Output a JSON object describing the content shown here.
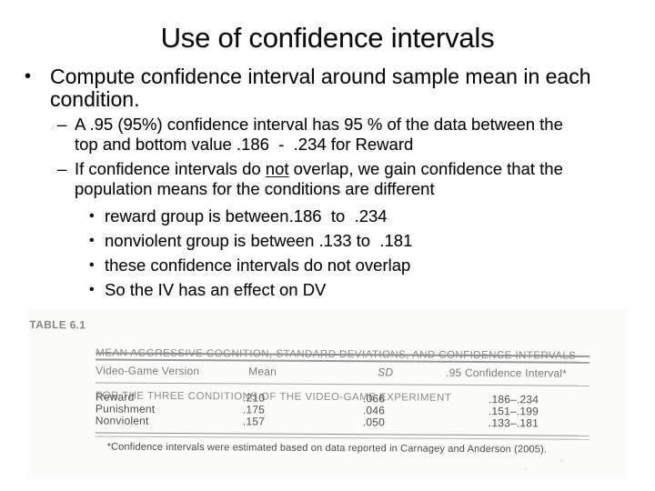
{
  "slide": {
    "title": "Use of confidence intervals",
    "markers": {
      "level1": "•",
      "level2": "–",
      "level3": "•"
    },
    "bullet1": {
      "lines": [
        "Compute confidence interval around sample mean in each",
        "condition."
      ]
    },
    "dash1": {
      "lines": [
        "A .95 (95%) confidence interval has 95 % of the data between the",
        "top and bottom value .186  -  .234 for Reward"
      ]
    },
    "dash2": {
      "line1_pre": "If confidence intervals do ",
      "line1_underline": "not",
      "line1_post": " overlap, we gain confidence that the",
      "line2": "population means for the conditions are different"
    },
    "sub_bullets": [
      "reward group is between.186  to  .234",
      "nonviolent group is between .133 to  .181",
      "these confidence intervals do not overlap",
      "So the IV has an effect on DV"
    ]
  },
  "table_figure": {
    "label": "TABLE 6.1",
    "caption_lines": [
      "MEAN AGGRESSIVE COGNITION, STANDARD DEVIATIONS, AND CONFIDENCE INTERVALS",
      "FOR THE THREE CONDITIONS OF THE VIDEO-GAME EXPERIMENT"
    ],
    "columns": [
      "Video-Game Version",
      "Mean",
      "SD",
      ".95 Confidence Interval*"
    ],
    "rows": [
      {
        "version": "Reward",
        "mean": ".210",
        "sd": ".066",
        "ci": ".186–.234"
      },
      {
        "version": "Punishment",
        "mean": ".175",
        "sd": ".046",
        "ci": ".151–.199"
      },
      {
        "version": "Nonviolent",
        "mean": ".157",
        "sd": ".050",
        "ci": ".133–.181"
      }
    ],
    "footnote": "*Confidence intervals were estimated based on data reported in Carnagey and Anderson (2005)."
  }
}
